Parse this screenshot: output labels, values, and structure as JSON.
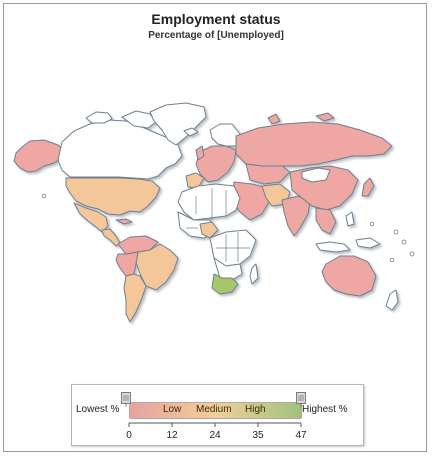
{
  "title": "Employment status",
  "subtitle": "Percentage of [Unemployed]",
  "legend": {
    "lowest_label": "Lowest %",
    "highest_label": "Highest %",
    "bands": [
      "Low",
      "Medium",
      "High"
    ],
    "ticks": [
      "0",
      "12",
      "24",
      "35",
      "47"
    ],
    "range": [
      0,
      47
    ],
    "colors": {
      "low": "#e8a1a1",
      "medium": "#f2cf9a",
      "high": "#9fc37c"
    }
  },
  "map": {
    "colors": {
      "unemployed_low": "#eea7a3",
      "unemployed_medium": "#f4c79a",
      "unemployed_high": "#a6c86a",
      "no_data": "#ffffff",
      "border": "#6f7f8f"
    }
  }
}
